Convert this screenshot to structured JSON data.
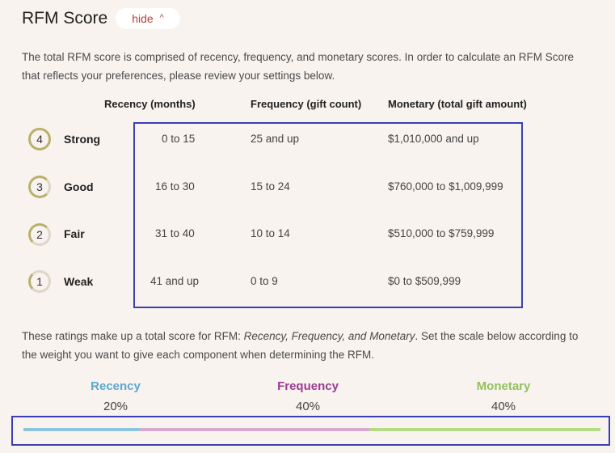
{
  "header": {
    "title": "RFM Score",
    "hide_label": "hide"
  },
  "intro": "The total RFM score is comprised of recency, frequency, and monetary scores. In order to calculate an RFM Score that reflects your preferences, please review your settings below.",
  "columns": {
    "recency": "Recency (months)",
    "frequency": "Frequency (gift count)",
    "monetary": "Monetary (total gift amount)"
  },
  "levels": [
    {
      "score": "4",
      "label": "Strong",
      "recency": "0 to 15",
      "frequency": "25  and up",
      "monetary": "$1,010,000  and up"
    },
    {
      "score": "3",
      "label": "Good",
      "recency": "16 to 30",
      "frequency": "15  to 24",
      "monetary": "$760,000  to $1,009,999"
    },
    {
      "score": "2",
      "label": "Fair",
      "recency": "31 to 40",
      "frequency": "10  to 14",
      "monetary": "$510,000  to $759,999"
    },
    {
      "score": "1",
      "label": "Weak",
      "recency": "41 and up",
      "frequency": "0 to 9",
      "monetary": "$0 to $509,999"
    }
  ],
  "note": {
    "before": "These ratings make up a total score for RFM: ",
    "emphasis": "Recency, Frequency, and Monetary",
    "after": ". Set the scale below according to the weight you want to give each component when determining the RFM."
  },
  "weights": [
    {
      "name": "Recency",
      "percent": "20%",
      "value": 0.2,
      "color": "#5ba8cf"
    },
    {
      "name": "Frequency",
      "percent": "40%",
      "value": 0.4,
      "color": "#9b3b8f"
    },
    {
      "name": "Monetary",
      "percent": "40%",
      "value": 0.4,
      "color": "#93c15f"
    }
  ],
  "slider_colors": [
    "#8cc3dd",
    "#d7a9cf",
    "#b5da86"
  ]
}
